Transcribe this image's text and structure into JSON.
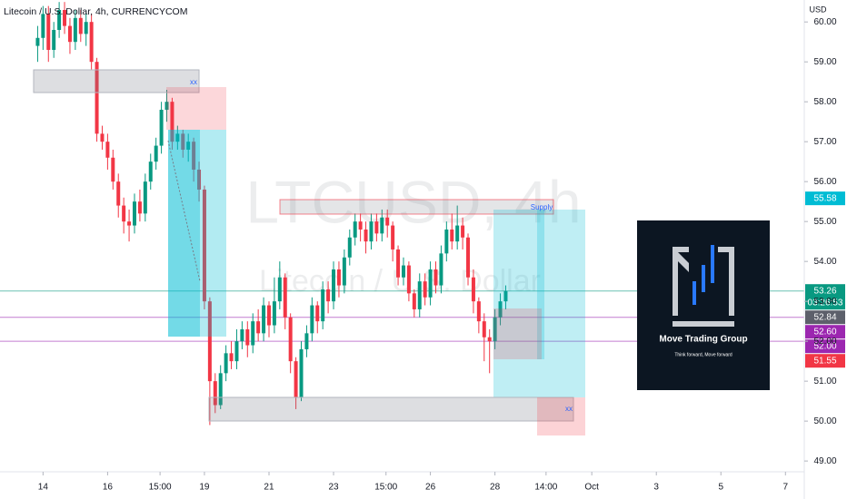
{
  "chart_data": {
    "type": "candlestick",
    "title": "Litecoin / U.S. Dollar, 4h, CURRENCYCOM",
    "currency": "USD",
    "watermark_symbol": "LTCUSD, 4h",
    "watermark_name": "Litecoin / U.S. Dollar",
    "up_color": "#089981",
    "down_color": "#f23645",
    "x": [
      -4,
      0,
      4,
      8,
      12,
      16,
      20,
      24,
      28,
      32,
      36,
      40,
      44,
      48,
      52,
      56,
      60,
      64,
      68,
      72,
      76,
      80,
      84,
      88,
      92,
      96,
      100,
      104,
      108,
      112,
      116,
      120,
      124,
      128,
      132,
      136,
      140,
      144,
      148,
      152,
      156,
      160,
      164,
      168,
      172,
      176,
      180,
      184,
      188,
      192,
      196,
      200,
      204,
      208,
      212,
      216,
      220,
      224,
      228,
      232,
      236,
      240,
      244,
      248,
      252,
      256,
      260,
      264,
      268,
      272,
      276,
      280,
      284,
      288,
      292,
      296,
      300,
      304,
      308,
      312,
      316,
      320,
      324,
      328,
      332,
      336,
      340,
      344
    ],
    "open": [
      59.4,
      59.6,
      60.2,
      59.3,
      59.8,
      60.3,
      59.9,
      59.5,
      60.1,
      59.7,
      60.0,
      59.0,
      57.2,
      57.0,
      56.6,
      56.0,
      55.4,
      55.0,
      54.9,
      55.5,
      55.2,
      56.0,
      56.5,
      56.9,
      57.8,
      58.0,
      57.0,
      57.2,
      56.8,
      57.0,
      56.3,
      55.8,
      53.0,
      51.0,
      50.4,
      51.2,
      51.7,
      51.5,
      52.0,
      52.3,
      51.9,
      52.5,
      52.2,
      52.9,
      52.4,
      53.0,
      53.6,
      52.6,
      51.5,
      50.6,
      51.8,
      52.2,
      52.9,
      52.5,
      53.3,
      53.0,
      53.8,
      53.4,
      54.1,
      54.6,
      55.0,
      54.8,
      54.5,
      55.0,
      54.7,
      55.1,
      54.9,
      54.3,
      53.6,
      53.9,
      53.2,
      52.8,
      53.5,
      53.1,
      53.8,
      53.4,
      54.2,
      54.8,
      54.5,
      54.9,
      54.6,
      53.6,
      53.0,
      52.5,
      52.1,
      52.0,
      52.6,
      53.0
    ],
    "high": [
      59.9,
      60.4,
      60.4,
      60.0,
      60.5,
      60.5,
      60.1,
      60.3,
      60.3,
      60.2,
      60.2,
      59.1,
      57.4,
      57.2,
      56.8,
      56.2,
      55.6,
      55.3,
      55.7,
      55.8,
      56.2,
      56.7,
      57.1,
      58.0,
      58.3,
      58.1,
      57.4,
      57.3,
      57.2,
      57.1,
      56.5,
      55.9,
      53.1,
      51.2,
      51.4,
      51.9,
      52.0,
      52.3,
      52.5,
      52.5,
      52.7,
      52.8,
      53.1,
      53.0,
      53.6,
      54.0,
      53.7,
      52.7,
      51.6,
      52.0,
      52.4,
      53.1,
      53.0,
      53.5,
      53.5,
      54.0,
      54.0,
      54.3,
      54.8,
      55.2,
      55.2,
      55.0,
      55.2,
      55.2,
      55.3,
      55.3,
      55.0,
      54.4,
      54.1,
      54.0,
      53.3,
      53.7,
      53.7,
      54.0,
      54.0,
      54.4,
      55.0,
      55.2,
      55.4,
      55.1,
      54.7,
      53.8,
      53.1,
      52.7,
      52.3,
      52.8,
      53.2,
      53.4
    ],
    "low": [
      59.0,
      59.3,
      59.0,
      59.1,
      59.6,
      59.7,
      59.2,
      59.3,
      59.5,
      59.4,
      58.8,
      57.0,
      56.8,
      56.3,
      55.8,
      55.1,
      54.7,
      54.5,
      54.7,
      55.0,
      55.0,
      55.8,
      56.3,
      56.7,
      57.5,
      56.8,
      56.8,
      56.6,
      56.5,
      56.0,
      55.5,
      52.8,
      49.9,
      50.2,
      50.3,
      51.0,
      51.3,
      51.3,
      51.8,
      51.6,
      51.7,
      52.0,
      52.0,
      52.1,
      52.2,
      52.8,
      52.3,
      51.2,
      50.3,
      50.5,
      51.6,
      52.0,
      52.2,
      52.3,
      52.7,
      52.8,
      53.1,
      53.2,
      53.9,
      54.4,
      54.5,
      54.2,
      54.3,
      54.5,
      54.5,
      54.6,
      54.0,
      53.4,
      53.4,
      53.0,
      52.6,
      52.6,
      52.9,
      52.9,
      53.2,
      53.2,
      54.0,
      54.3,
      54.3,
      54.3,
      53.4,
      52.7,
      52.2,
      51.5,
      51.2,
      51.8,
      52.4,
      52.8
    ],
    "close": [
      59.6,
      60.2,
      59.3,
      59.8,
      60.3,
      59.9,
      59.5,
      60.1,
      59.7,
      60.0,
      59.0,
      57.2,
      57.0,
      56.6,
      56.0,
      55.4,
      55.0,
      54.9,
      55.5,
      55.2,
      56.0,
      56.5,
      56.9,
      57.8,
      58.0,
      57.0,
      57.2,
      56.8,
      57.0,
      56.3,
      55.8,
      53.0,
      51.0,
      50.4,
      51.2,
      51.7,
      51.5,
      52.0,
      52.3,
      51.9,
      52.5,
      52.2,
      52.9,
      52.4,
      53.0,
      53.6,
      52.6,
      51.5,
      50.6,
      51.8,
      52.2,
      52.9,
      52.5,
      53.3,
      53.0,
      53.8,
      53.4,
      54.1,
      54.6,
      55.0,
      54.8,
      54.5,
      55.0,
      54.7,
      55.1,
      54.9,
      54.3,
      53.6,
      53.9,
      53.2,
      52.8,
      53.5,
      53.1,
      53.8,
      53.4,
      54.2,
      54.8,
      54.5,
      54.9,
      54.6,
      53.6,
      53.0,
      52.5,
      52.1,
      52.0,
      52.6,
      53.0,
      53.26
    ],
    "xlim": [
      -32,
      566
    ],
    "xticks": [
      {
        "value": 0,
        "label": "14"
      },
      {
        "value": 48,
        "label": "16"
      },
      {
        "value": 87,
        "label": "15:00"
      },
      {
        "value": 120,
        "label": "19"
      },
      {
        "value": 168,
        "label": "21"
      },
      {
        "value": 216,
        "label": "23"
      },
      {
        "value": 255,
        "label": "15:00"
      },
      {
        "value": 288,
        "label": "26"
      },
      {
        "value": 336,
        "label": "28"
      },
      {
        "value": 374,
        "label": "14:00"
      },
      {
        "value": 408,
        "label": "Oct"
      },
      {
        "value": 456,
        "label": "3"
      },
      {
        "value": 504,
        "label": "5"
      },
      {
        "value": 552,
        "label": "7"
      }
    ],
    "ylim": [
      48.73,
      60.55
    ],
    "yticks": [
      {
        "value": 49,
        "label": "49.00"
      },
      {
        "value": 50,
        "label": "50.00"
      },
      {
        "value": 51,
        "label": "51.00"
      },
      {
        "value": 52,
        "label": "52.00"
      },
      {
        "value": 53,
        "label": "53.00"
      },
      {
        "value": 54,
        "label": "54.00"
      },
      {
        "value": 55,
        "label": "55.00"
      },
      {
        "value": 56,
        "label": "56.00"
      },
      {
        "value": 57,
        "label": "57.00"
      },
      {
        "value": 58,
        "label": "58.00"
      },
      {
        "value": 59,
        "label": "59.00"
      },
      {
        "value": 60,
        "label": "60.00"
      }
    ],
    "price_tags": [
      {
        "value": 55.58,
        "label": "55.58",
        "color": "#00bcd4",
        "line": false
      },
      {
        "value": 53.26,
        "label": "53.26",
        "color": "#089981",
        "line": true
      },
      {
        "value": 52.84,
        "label": "52.84",
        "color": "#5d606b",
        "line": false
      },
      {
        "value": 52.6,
        "label": "52.60",
        "color": "#9c27b0",
        "line": true
      },
      {
        "value": 52.0,
        "label": "52.00",
        "color": "#9c27b0",
        "line": true
      },
      {
        "value": 51.55,
        "label": "51.55",
        "color": "#f23645",
        "line": false
      }
    ],
    "countdown": "03:26:53",
    "annotations": [
      "xx",
      "Supply",
      "xx"
    ],
    "logo": {
      "name": "Move Trading Group",
      "tagline": "Think forward, Move forward"
    }
  }
}
